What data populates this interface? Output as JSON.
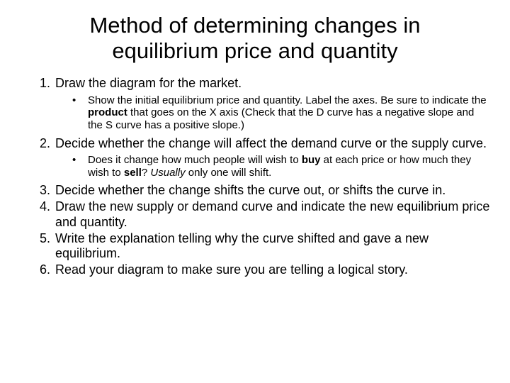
{
  "title": "Method of determining changes in equilibrium price and quantity",
  "items": [
    {
      "text": "Draw the diagram for the market.",
      "sub": [
        {
          "parts": [
            {
              "t": "Show the initial equilibrium price and quantity. Label the axes. Be sure to indicate the "
            },
            {
              "t": "product",
              "b": true
            },
            {
              "t": " that goes on the X axis (Check that the D curve has a negative slope and the S curve has a positive slope.)"
            }
          ]
        }
      ]
    },
    {
      "text": "Decide whether the change will affect the demand curve or the supply curve.",
      "sub": [
        {
          "parts": [
            {
              "t": "Does it change how much people will wish to "
            },
            {
              "t": "buy",
              "b": true
            },
            {
              "t": " at each price or how much they wish to "
            },
            {
              "t": "sell",
              "b": true
            },
            {
              "t": "? "
            },
            {
              "t": "Usually",
              "i": true
            },
            {
              "t": " only one will shift."
            }
          ]
        }
      ]
    },
    {
      "text": "Decide whether the change shifts the curve out, or shifts the curve in."
    },
    {
      "text": "Draw the new supply or demand curve and indicate the new equilibrium price and quantity."
    },
    {
      "text": "Write the explanation telling why the curve shifted and gave a new equilibrium."
    },
    {
      "text": "Read your diagram to make sure you are telling a logical story."
    }
  ],
  "fonts": {
    "title_size": 31,
    "body_size": 18,
    "sub_size": 15
  },
  "colors": {
    "background": "#ffffff",
    "text": "#000000"
  }
}
